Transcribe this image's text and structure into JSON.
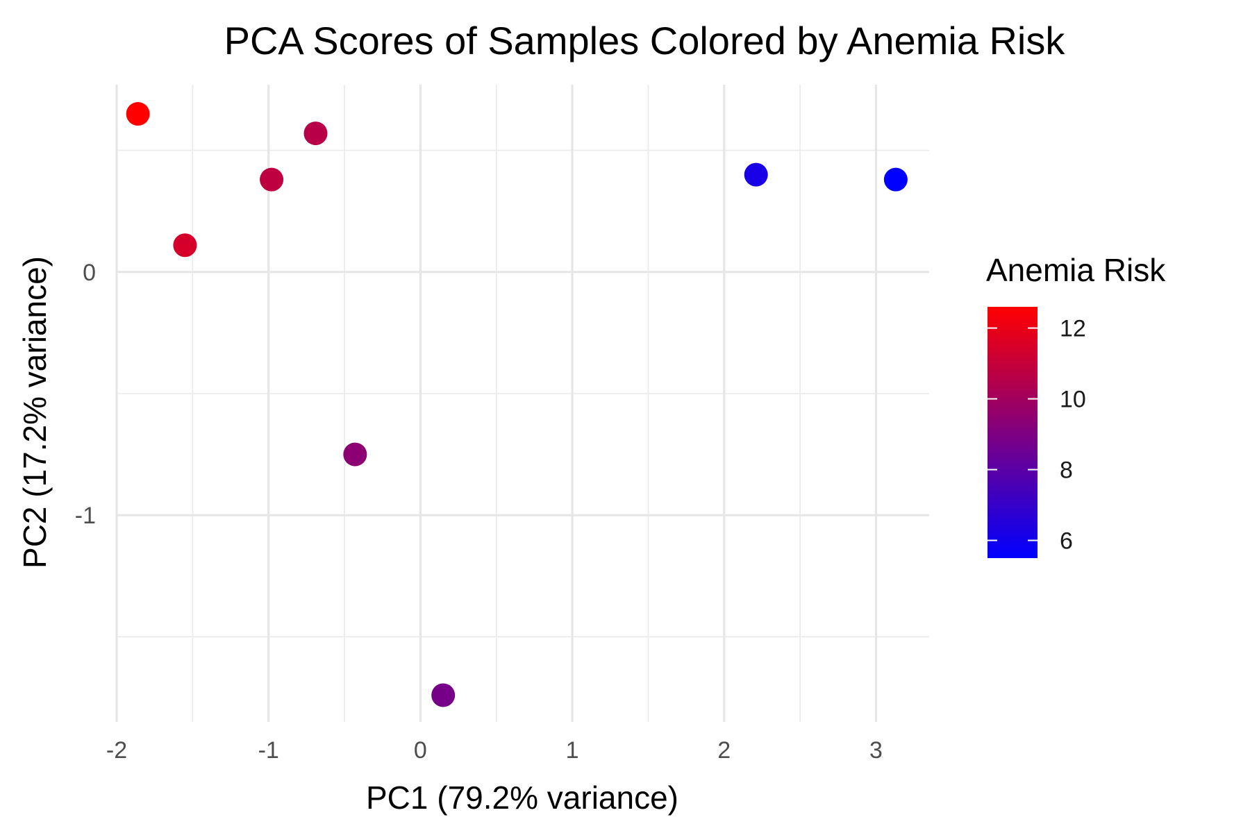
{
  "chart_data": {
    "type": "scatter",
    "title": "PCA Scores of Samples Colored by Anemia Risk",
    "xlabel": "PC1 (79.2% variance)",
    "ylabel": "PC2 (17.2% variance)",
    "xlim": [
      -2.0,
      3.35
    ],
    "ylim": [
      -1.85,
      0.77
    ],
    "x_ticks": [
      -2,
      -1,
      0,
      1,
      2,
      3
    ],
    "x_tick_labels": [
      "-2",
      "-1",
      "0",
      "1",
      "2",
      "3"
    ],
    "y_ticks": [
      0,
      -1
    ],
    "y_tick_labels": [
      "0",
      "-1"
    ],
    "grid": true,
    "legend": {
      "title": "Anemia Risk",
      "placement": "right",
      "type": "colorbar",
      "low_color": "#0000ff",
      "high_color": "#ff0000",
      "range": [
        5.5,
        12.6
      ],
      "ticks": [
        6,
        8,
        10,
        12
      ],
      "tick_labels": [
        "6",
        "8",
        "10",
        "12"
      ]
    },
    "points": [
      {
        "x": -1.86,
        "y": 0.65,
        "risk": 12.6
      },
      {
        "x": -0.69,
        "y": 0.57,
        "risk": 10.6
      },
      {
        "x": -0.98,
        "y": 0.38,
        "risk": 10.8
      },
      {
        "x": -1.55,
        "y": 0.11,
        "risk": 11.4
      },
      {
        "x": -0.43,
        "y": -0.75,
        "risk": 9.4
      },
      {
        "x": 0.15,
        "y": -1.74,
        "risk": 8.8
      },
      {
        "x": 2.21,
        "y": 0.4,
        "risk": 6.2
      },
      {
        "x": 3.13,
        "y": 0.38,
        "risk": 5.5
      }
    ]
  }
}
